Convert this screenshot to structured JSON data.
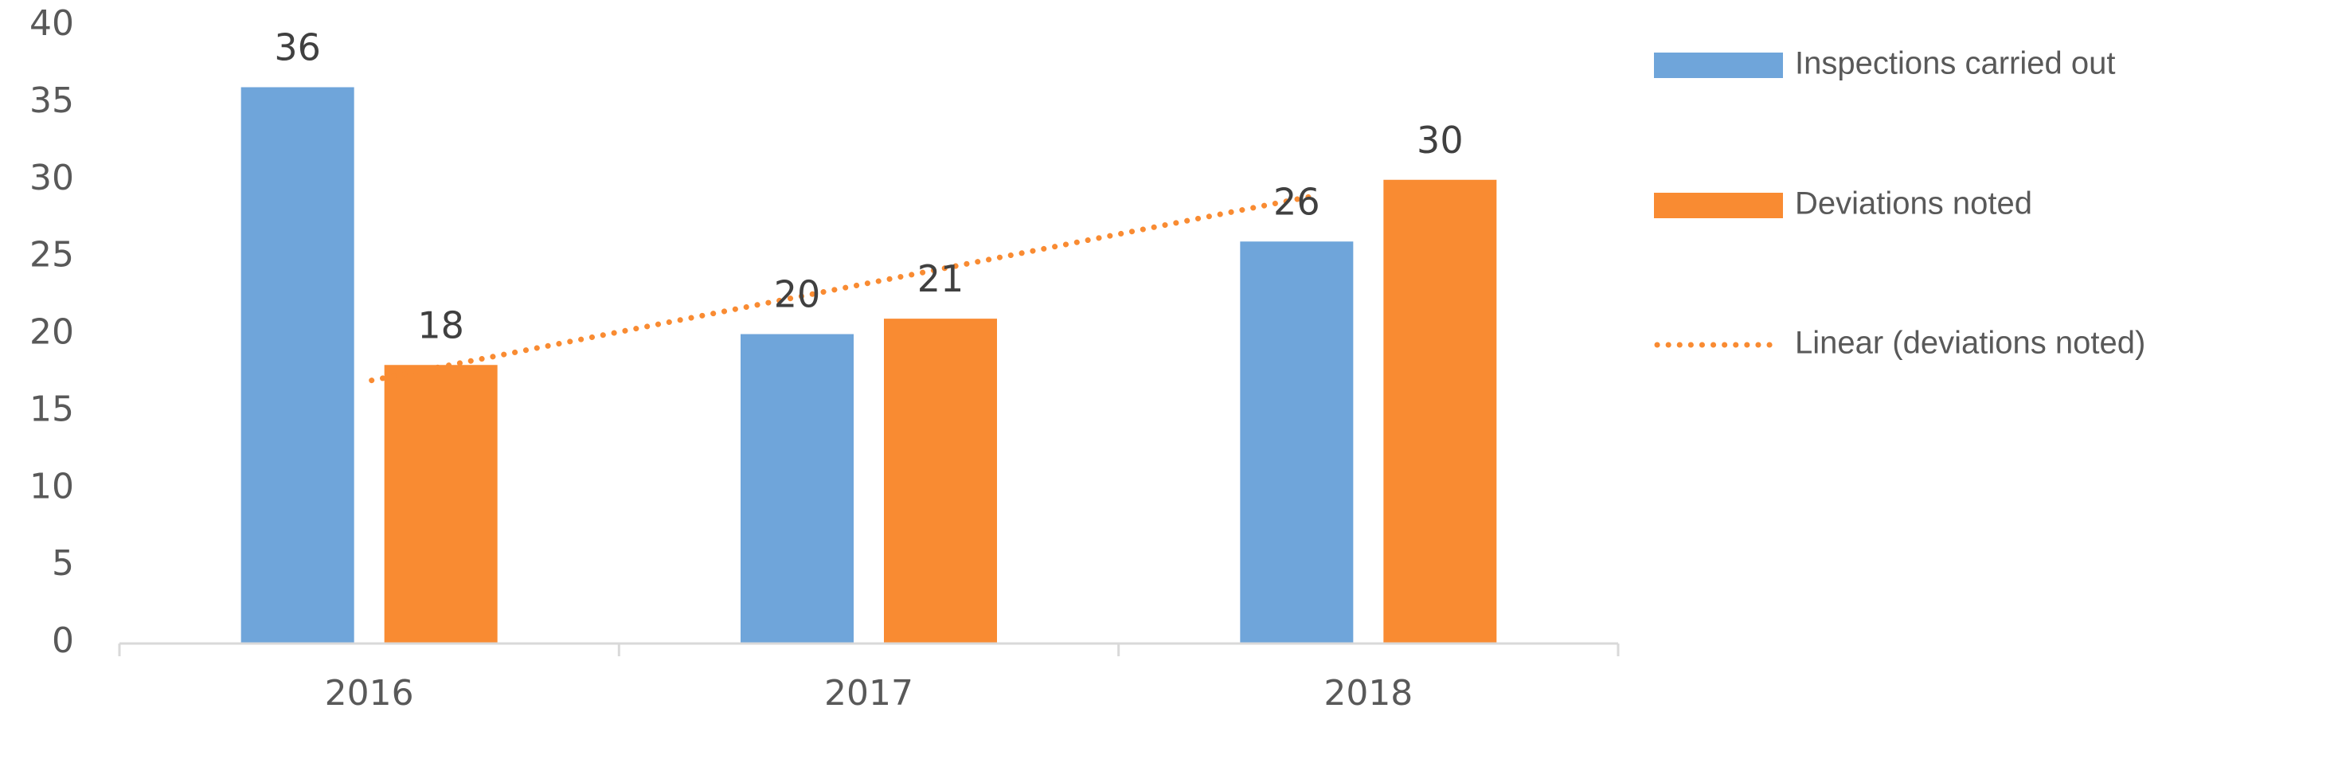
{
  "chart_data": {
    "type": "bar",
    "categories": [
      "2016",
      "2017",
      "2018"
    ],
    "series": [
      {
        "name": "Inspections carried out",
        "values": [
          36,
          20,
          26
        ],
        "color": "#6fa5da"
      },
      {
        "name": "Deviations noted",
        "values": [
          18,
          21,
          30
        ],
        "color": "#f98b32"
      }
    ],
    "trendline": {
      "name": "Linear (deviations noted)",
      "type": "linear",
      "of_series": "Deviations noted",
      "start": 17.0,
      "end": 29.0,
      "color": "#f98b32",
      "style": "dotted"
    },
    "ylim": [
      0,
      40
    ],
    "yticks": [
      0,
      5,
      10,
      15,
      20,
      25,
      30,
      35,
      40
    ],
    "grid": false,
    "legend": "right",
    "data_labels": true
  }
}
